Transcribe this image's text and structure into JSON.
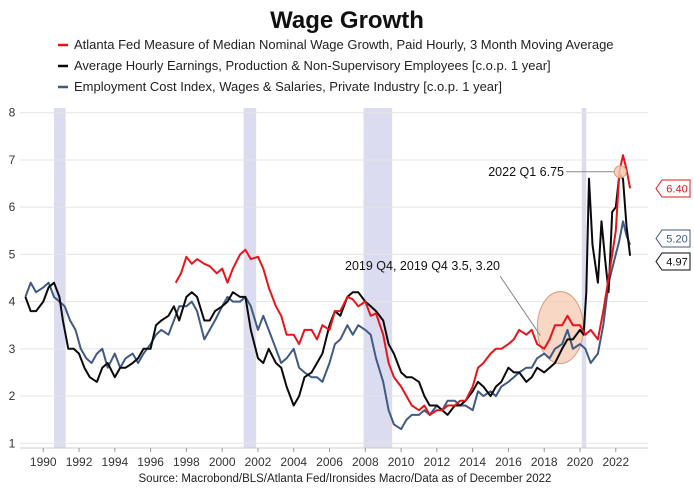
{
  "chart_data": {
    "type": "line",
    "title": "Wage Growth",
    "source": "Source: Macrobond/BLS/Atlanta Fed/Ironsides Macro/Data as of December 2022",
    "xlim": [
      1988.7,
      2023.8
    ],
    "ylim": [
      0.9,
      8.1
    ],
    "x_ticks": [
      1990,
      1992,
      1994,
      1996,
      1998,
      2000,
      2002,
      2004,
      2006,
      2008,
      2010,
      2012,
      2014,
      2016,
      2018,
      2020,
      2022
    ],
    "y_ticks": [
      1,
      2,
      3,
      4,
      5,
      6,
      7,
      8
    ],
    "grid": true,
    "legend_position": "top",
    "recessions": [
      [
        1990.6,
        1991.25
      ],
      [
        2001.2,
        2001.9
      ],
      [
        2007.9,
        2009.5
      ],
      [
        2020.1,
        2020.35
      ]
    ],
    "recession_color": "#dcdcf0",
    "series": [
      {
        "name": "Atlanta Fed Measure of Median Nominal Wage Growth, Paid Hourly, 3 Month Moving Average",
        "color": "#e8141b",
        "x": [
          1997.4,
          1997.7,
          1998.0,
          1998.3,
          1998.6,
          1999.0,
          1999.3,
          1999.7,
          2000.0,
          2000.3,
          2000.6,
          2001.0,
          2001.3,
          2001.6,
          2002.0,
          2002.3,
          2002.6,
          2003.0,
          2003.3,
          2003.6,
          2004.0,
          2004.3,
          2004.6,
          2005.0,
          2005.3,
          2005.6,
          2006.0,
          2006.3,
          2006.6,
          2007.0,
          2007.3,
          2007.6,
          2008.0,
          2008.3,
          2008.6,
          2009.0,
          2009.3,
          2009.6,
          2010.0,
          2010.3,
          2010.6,
          2011.0,
          2011.3,
          2011.6,
          2012.0,
          2012.3,
          2012.6,
          2013.0,
          2013.3,
          2013.6,
          2014.0,
          2014.3,
          2014.6,
          2015.0,
          2015.3,
          2015.6,
          2016.0,
          2016.3,
          2016.6,
          2017.0,
          2017.3,
          2017.6,
          2018.0,
          2018.3,
          2018.6,
          2019.0,
          2019.3,
          2019.6,
          2020.0,
          2020.3,
          2020.6,
          2021.0,
          2021.3,
          2021.6,
          2022.0,
          2022.2,
          2022.4,
          2022.6,
          2022.8
        ],
        "y": [
          4.4,
          4.6,
          4.95,
          4.8,
          4.9,
          4.8,
          4.75,
          4.6,
          4.7,
          4.4,
          4.7,
          5.0,
          5.1,
          4.9,
          4.95,
          4.7,
          4.3,
          3.9,
          3.7,
          3.3,
          3.3,
          3.1,
          3.4,
          3.4,
          3.2,
          3.5,
          3.4,
          3.8,
          3.8,
          4.1,
          4.05,
          3.9,
          4.0,
          3.7,
          3.75,
          3.3,
          2.7,
          2.4,
          2.2,
          2.0,
          1.8,
          1.7,
          1.8,
          1.6,
          1.7,
          1.7,
          1.8,
          1.8,
          1.9,
          1.9,
          2.2,
          2.6,
          2.7,
          2.9,
          3.0,
          3.0,
          3.1,
          3.2,
          3.4,
          3.3,
          3.4,
          3.1,
          3.0,
          3.2,
          3.5,
          3.5,
          3.7,
          3.5,
          3.5,
          3.3,
          3.4,
          3.2,
          3.8,
          4.5,
          5.5,
          6.75,
          7.1,
          6.8,
          6.4
        ]
      },
      {
        "name": "Average Hourly Earnings, Production & Non-Supervisory Employees [c.o.p. 1 year]",
        "color": "#0a0a0a",
        "x": [
          1989.0,
          1989.3,
          1989.6,
          1990.0,
          1990.3,
          1990.6,
          1990.9,
          1991.1,
          1991.4,
          1991.7,
          1992.0,
          1992.3,
          1992.6,
          1993.0,
          1993.3,
          1993.6,
          1994.0,
          1994.3,
          1994.6,
          1995.0,
          1995.3,
          1995.6,
          1996.0,
          1996.3,
          1996.6,
          1997.0,
          1997.3,
          1997.6,
          1998.0,
          1998.3,
          1998.6,
          1999.0,
          1999.3,
          1999.6,
          2000.0,
          2000.3,
          2000.6,
          2001.0,
          2001.3,
          2001.6,
          2002.0,
          2002.3,
          2002.6,
          2003.0,
          2003.3,
          2003.6,
          2004.0,
          2004.3,
          2004.6,
          2005.0,
          2005.3,
          2005.6,
          2006.0,
          2006.3,
          2006.6,
          2007.0,
          2007.3,
          2007.6,
          2008.0,
          2008.3,
          2008.6,
          2009.0,
          2009.3,
          2009.6,
          2010.0,
          2010.3,
          2010.6,
          2011.0,
          2011.3,
          2011.6,
          2012.0,
          2012.3,
          2012.6,
          2013.0,
          2013.3,
          2013.6,
          2014.0,
          2014.3,
          2014.6,
          2015.0,
          2015.3,
          2015.6,
          2016.0,
          2016.3,
          2016.6,
          2017.0,
          2017.3,
          2017.6,
          2018.0,
          2018.3,
          2018.6,
          2019.0,
          2019.3,
          2019.6,
          2020.0,
          2020.2,
          2020.35,
          2020.5,
          2020.7,
          2021.0,
          2021.2,
          2021.4,
          2021.6,
          2021.8,
          2022.0,
          2022.2,
          2022.4,
          2022.6,
          2022.8
        ],
        "y": [
          4.1,
          3.8,
          3.8,
          4.0,
          4.3,
          4.4,
          4.1,
          3.6,
          3.0,
          3.0,
          2.9,
          2.6,
          2.4,
          2.3,
          2.6,
          2.7,
          2.4,
          2.6,
          2.6,
          2.7,
          2.8,
          3.0,
          3.0,
          3.5,
          3.6,
          3.7,
          3.9,
          3.6,
          4.1,
          4.2,
          4.1,
          3.6,
          3.6,
          3.8,
          3.9,
          4.0,
          4.2,
          4.1,
          4.1,
          3.4,
          2.8,
          2.7,
          3.0,
          2.7,
          2.6,
          2.2,
          1.8,
          2.0,
          2.4,
          2.5,
          2.7,
          2.9,
          3.5,
          3.8,
          3.7,
          4.1,
          4.2,
          4.2,
          4.0,
          3.9,
          3.8,
          3.6,
          3.1,
          2.9,
          2.5,
          2.4,
          2.4,
          2.3,
          2.0,
          1.8,
          1.8,
          1.7,
          1.6,
          1.8,
          1.8,
          1.9,
          2.1,
          2.3,
          2.2,
          2.0,
          2.2,
          2.3,
          2.6,
          2.5,
          2.5,
          2.3,
          2.4,
          2.6,
          2.5,
          2.6,
          2.7,
          3.0,
          3.2,
          3.2,
          3.4,
          3.3,
          4.2,
          6.6,
          5.2,
          4.4,
          5.7,
          4.9,
          4.2,
          5.9,
          6.0,
          6.7,
          6.6,
          5.6,
          4.97
        ]
      },
      {
        "name": "Employment Cost Index, Wages & Salaries, Private Industry [c.o.p. 1 year]",
        "color": "#3f5a84",
        "x": [
          1989.0,
          1989.3,
          1989.6,
          1990.0,
          1990.3,
          1990.6,
          1990.9,
          1991.2,
          1991.5,
          1991.8,
          1992.1,
          1992.4,
          1992.7,
          1993.0,
          1993.3,
          1993.6,
          1994.0,
          1994.3,
          1994.6,
          1995.0,
          1995.3,
          1995.6,
          1996.0,
          1996.3,
          1996.6,
          1997.0,
          1997.3,
          1997.6,
          1998.0,
          1998.3,
          1998.6,
          1999.0,
          1999.3,
          1999.6,
          2000.0,
          2000.3,
          2000.6,
          2001.0,
          2001.3,
          2001.6,
          2002.0,
          2002.3,
          2002.6,
          2003.0,
          2003.3,
          2003.6,
          2004.0,
          2004.3,
          2004.6,
          2005.0,
          2005.3,
          2005.6,
          2006.0,
          2006.3,
          2006.6,
          2007.0,
          2007.3,
          2007.6,
          2008.0,
          2008.3,
          2008.6,
          2009.0,
          2009.3,
          2009.6,
          2010.0,
          2010.3,
          2010.6,
          2011.0,
          2011.3,
          2011.6,
          2012.0,
          2012.3,
          2012.6,
          2013.0,
          2013.3,
          2013.6,
          2014.0,
          2014.3,
          2014.6,
          2015.0,
          2015.3,
          2015.6,
          2016.0,
          2016.3,
          2016.6,
          2017.0,
          2017.3,
          2017.6,
          2018.0,
          2018.3,
          2018.6,
          2019.0,
          2019.3,
          2019.6,
          2020.0,
          2020.3,
          2020.6,
          2021.0,
          2021.3,
          2021.6,
          2022.0,
          2022.2,
          2022.4,
          2022.6,
          2022.8
        ],
        "y": [
          4.1,
          4.4,
          4.2,
          4.3,
          4.4,
          4.1,
          4.0,
          3.9,
          3.6,
          3.4,
          3.0,
          2.8,
          2.7,
          2.9,
          3.0,
          2.6,
          2.9,
          2.6,
          2.8,
          2.9,
          2.7,
          2.9,
          3.1,
          3.3,
          3.4,
          3.3,
          3.6,
          3.9,
          3.9,
          4.0,
          3.8,
          3.2,
          3.4,
          3.6,
          3.9,
          4.1,
          4.0,
          4.0,
          4.1,
          3.9,
          3.4,
          3.7,
          3.4,
          3.0,
          2.7,
          2.8,
          3.0,
          2.6,
          2.5,
          2.4,
          2.4,
          2.3,
          2.7,
          3.1,
          3.2,
          3.5,
          3.3,
          3.5,
          3.4,
          3.3,
          2.8,
          2.3,
          1.7,
          1.4,
          1.3,
          1.5,
          1.6,
          1.6,
          1.7,
          1.6,
          1.8,
          1.7,
          1.9,
          1.9,
          1.8,
          1.8,
          1.7,
          2.1,
          2.0,
          2.1,
          2.0,
          2.2,
          2.3,
          2.4,
          2.5,
          2.6,
          2.6,
          2.8,
          2.9,
          2.8,
          3.0,
          3.1,
          3.4,
          3.0,
          3.1,
          3.0,
          2.7,
          2.9,
          3.5,
          4.4,
          5.0,
          5.3,
          5.7,
          5.4,
          5.2
        ]
      }
    ],
    "annotations": [
      {
        "text": "2022 Q1 6.75",
        "x": 2022.25,
        "y": 6.75
      },
      {
        "text": "2019 Q4, 2019 Q4 3.5, 3.20",
        "x": 2018.9,
        "y": 3.45
      }
    ],
    "end_labels": [
      {
        "text": "6.40",
        "color": "#e8141b",
        "value": 6.4
      },
      {
        "text": "5.20",
        "color": "#3f5a84",
        "value": 5.2
      },
      {
        "text": "4.97",
        "color": "#0a0a0a",
        "value": 4.97
      }
    ]
  }
}
